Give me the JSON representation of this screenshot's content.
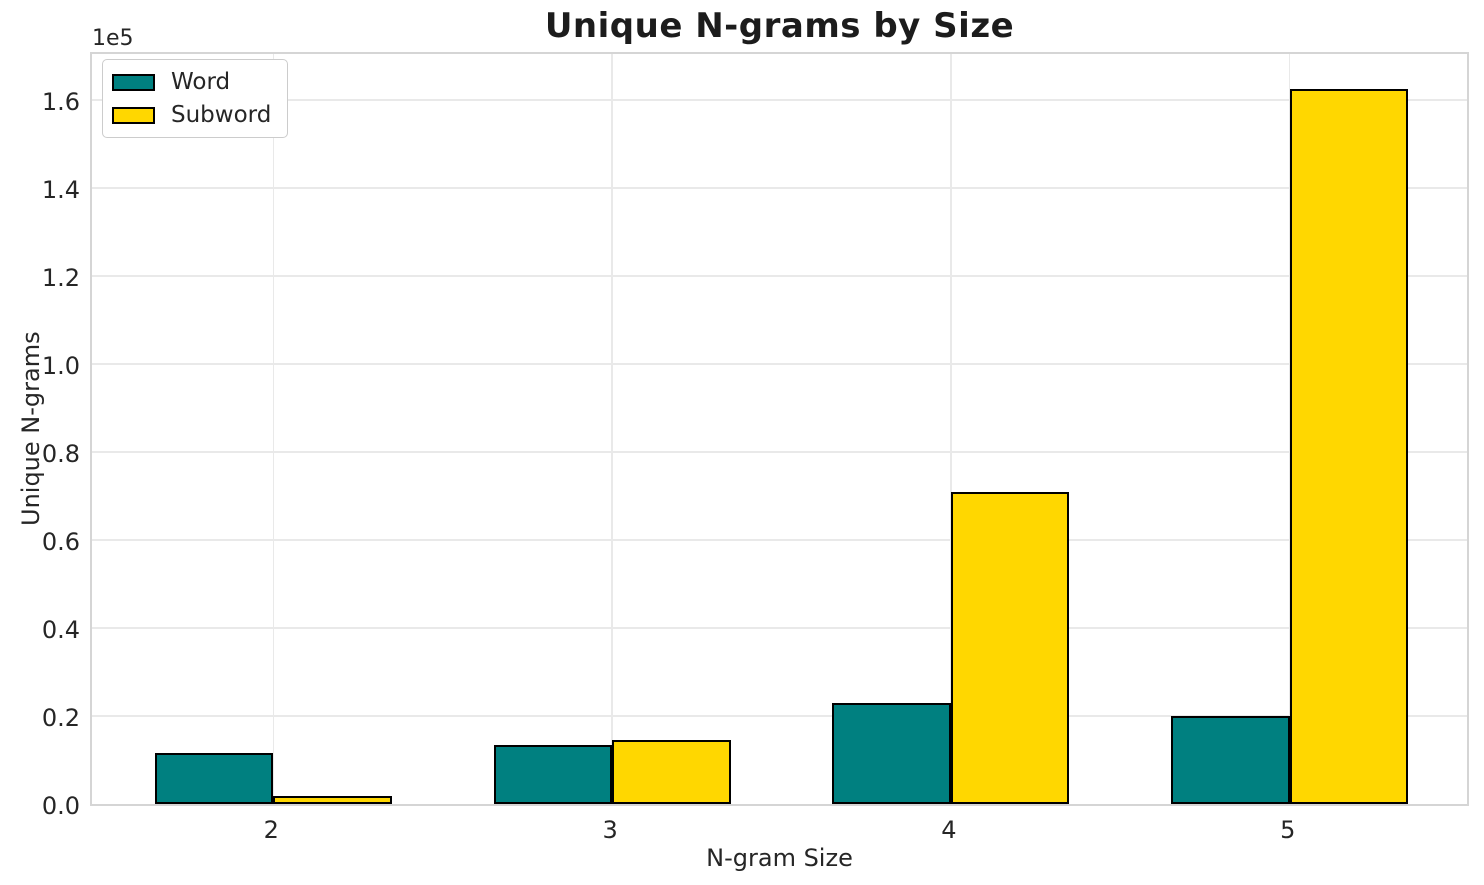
{
  "title": "Unique N-grams by Size",
  "axes": {
    "xlabel": "N-gram Size",
    "ylabel": "Unique N-grams",
    "offset_text": "1e5"
  },
  "legend": {
    "position": "upper left",
    "entries": [
      "Word",
      "Subword"
    ]
  },
  "chart_data": {
    "type": "bar",
    "title": "Unique N-grams by Size",
    "xlabel": "N-gram Size",
    "ylabel": "Unique N-grams",
    "y_offset_text": "1e5",
    "categories": [
      "2",
      "3",
      "4",
      "5"
    ],
    "x_values": [
      2,
      3,
      4,
      5
    ],
    "series": [
      {
        "name": "Word",
        "color": "#008080",
        "edge_color": "#000000",
        "values": [
          11600,
          13500,
          23000,
          20000
        ]
      },
      {
        "name": "Subword",
        "color": "#FFD700",
        "edge_color": "#000000",
        "values": [
          1800,
          14600,
          71000,
          162500
        ]
      }
    ],
    "bar_width": 0.35,
    "xlim": [
      1.465,
      5.535
    ],
    "ylim": [
      0,
      171400
    ],
    "yticks": [
      0,
      20000,
      40000,
      60000,
      80000,
      100000,
      120000,
      140000,
      160000
    ],
    "ytick_labels": [
      "0.0",
      "0.2",
      "0.4",
      "0.6",
      "0.8",
      "1.0",
      "1.2",
      "1.4",
      "1.6"
    ],
    "grid": true,
    "legend_position": "upper left"
  },
  "colors": {
    "word": "#008080",
    "subword": "#FFD700",
    "bar_edge": "#000000",
    "grid": "#e9e9e9",
    "spine": "#d5d5d5",
    "text": "#262626",
    "title_text": "#1c1c1c",
    "background": "#ffffff"
  }
}
